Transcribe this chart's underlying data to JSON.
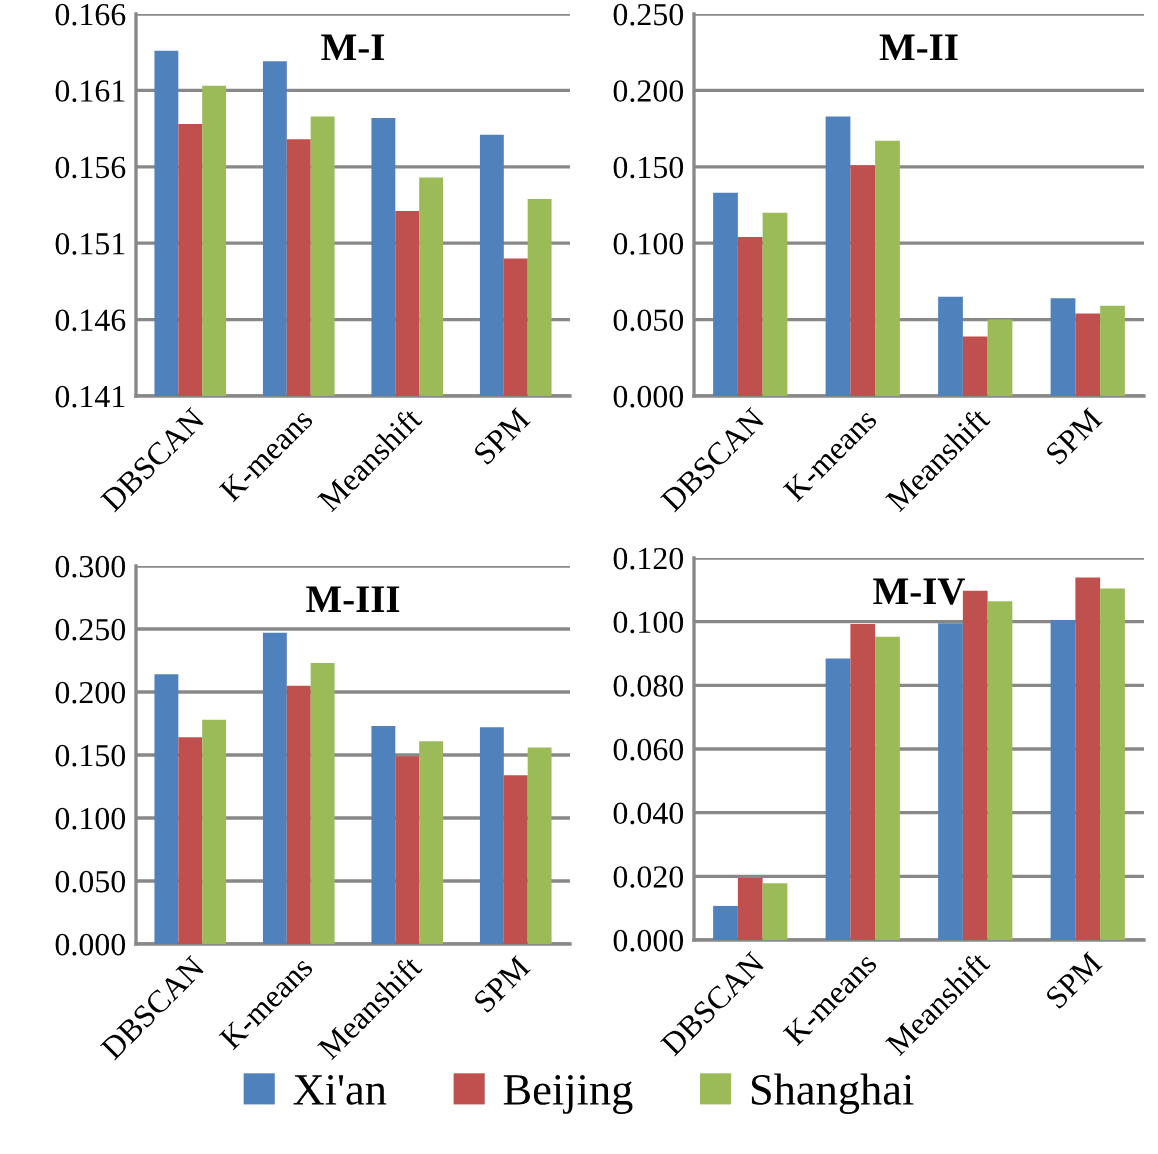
{
  "chart_data": [
    {
      "type": "bar",
      "title": "M-I",
      "categories": [
        "DBSCAN",
        "K-means",
        "Meanshift",
        "SPM"
      ],
      "ylim": [
        0.141,
        0.166
      ],
      "yticks": [
        {
          "value": 0.141,
          "label": "0.141"
        },
        {
          "value": 0.146,
          "label": "0.146"
        },
        {
          "value": 0.151,
          "label": "0.151"
        },
        {
          "value": 0.156,
          "label": "0.156"
        },
        {
          "value": 0.161,
          "label": "0.161"
        },
        {
          "value": 0.166,
          "label": "0.166"
        }
      ],
      "grid": "y",
      "legend": "bottom",
      "series": [
        {
          "name": "Xi'an",
          "color": "#4f81bd",
          "values": [
            0.1636,
            0.1629,
            0.1592,
            0.1581
          ]
        },
        {
          "name": "Beijing",
          "color": "#c0504d",
          "values": [
            0.1588,
            0.1578,
            0.1531,
            0.15
          ]
        },
        {
          "name": "Shanghai",
          "color": "#9bbb59",
          "values": [
            0.1613,
            0.1593,
            0.1553,
            0.1539
          ]
        }
      ]
    },
    {
      "type": "bar",
      "title": "M-II",
      "categories": [
        "DBSCAN",
        "K-means",
        "Meanshift",
        "SPM"
      ],
      "ylim": [
        0,
        0.25
      ],
      "yticks": [
        {
          "value": 0,
          "label": "0.000"
        },
        {
          "value": 0.05,
          "label": "0.050"
        },
        {
          "value": 0.1,
          "label": "0.100"
        },
        {
          "value": 0.15,
          "label": "0.150"
        },
        {
          "value": 0.2,
          "label": "0.200"
        },
        {
          "value": 0.25,
          "label": "0.250"
        }
      ],
      "grid": "y",
      "series": [
        {
          "color": "#4f81bd",
          "values": [
            0.133,
            0.183,
            0.065,
            0.064
          ]
        },
        {
          "color": "#c0504d",
          "values": [
            0.104,
            0.151,
            0.039,
            0.054
          ]
        },
        {
          "color": "#9bbb59",
          "values": [
            0.12,
            0.167,
            0.05,
            0.059
          ]
        }
      ]
    },
    {
      "type": "bar",
      "title": "M-III",
      "categories": [
        "DBSCAN",
        "K-means",
        "Meanshift",
        "SPM"
      ],
      "ylim": [
        0,
        0.3
      ],
      "yticks": [
        {
          "value": 0,
          "label": "0.000"
        },
        {
          "value": 0.05,
          "label": "0.050"
        },
        {
          "value": 0.1,
          "label": "0.100"
        },
        {
          "value": 0.15,
          "label": "0.150"
        },
        {
          "value": 0.2,
          "label": "0.200"
        },
        {
          "value": 0.25,
          "label": "0.250"
        },
        {
          "value": 0.3,
          "label": "0.300"
        }
      ],
      "grid": "y",
      "series": [
        {
          "color": "#4f81bd",
          "values": [
            0.214,
            0.247,
            0.173,
            0.172
          ]
        },
        {
          "color": "#c0504d",
          "values": [
            0.164,
            0.205,
            0.149,
            0.134
          ]
        },
        {
          "color": "#9bbb59",
          "values": [
            0.178,
            0.223,
            0.161,
            0.156
          ]
        }
      ]
    },
    {
      "type": "bar",
      "title": "M-IV",
      "categories": [
        "DBSCAN",
        "K-means",
        "Meanshift",
        "SPM"
      ],
      "ylim": [
        0,
        0.12
      ],
      "yticks": [
        {
          "value": 0,
          "label": "0.000"
        },
        {
          "value": 0.02,
          "label": "0.020"
        },
        {
          "value": 0.04,
          "label": "0.040"
        },
        {
          "value": 0.06,
          "label": "0.060"
        },
        {
          "value": 0.08,
          "label": "0.080"
        },
        {
          "value": 0.1,
          "label": "0.100"
        },
        {
          "value": 0.12,
          "label": "0.120"
        }
      ],
      "grid": "y",
      "series": [
        {
          "color": "#4f81bd",
          "values": [
            0.0107,
            0.0884,
            0.0995,
            0.1005
          ]
        },
        {
          "color": "#c0504d",
          "values": [
            0.0195,
            0.0993,
            0.1097,
            0.1139
          ]
        },
        {
          "color": "#9bbb59",
          "values": [
            0.0178,
            0.0953,
            0.1064,
            0.1104
          ]
        }
      ]
    }
  ]
}
